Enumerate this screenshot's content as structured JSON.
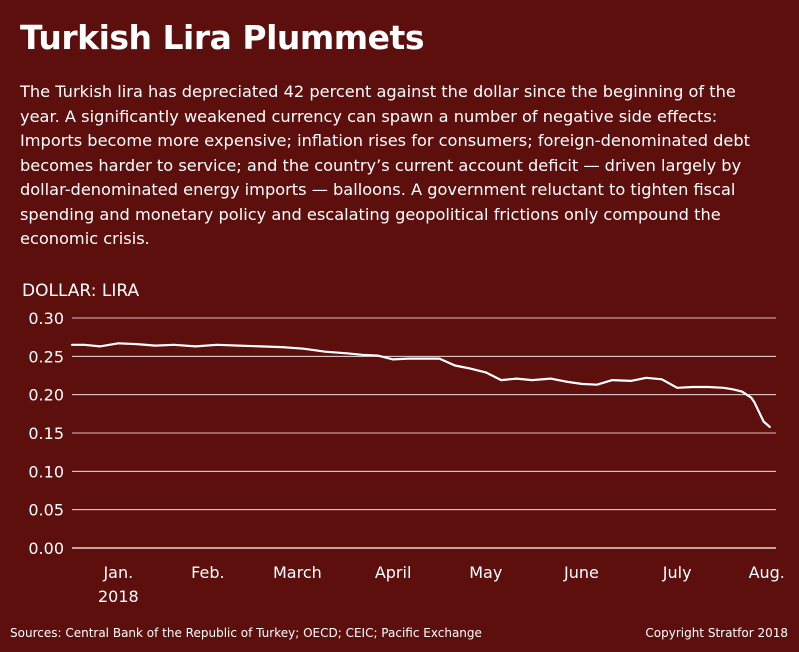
{
  "title": "Turkish Lira Plummets",
  "description": "The Turkish lira has depreciated 42 percent against the dollar since the beginning of the year. A significantly weakened currency can spawn a number of negative side effects: Imports become more expensive; inflation rises for consumers; foreign-denominated debt becomes harder to service; and the country’s current account deficit — driven largely by dollar-denominated energy imports — balloons.  A government reluctant to tighten fiscal spending and monetary policy and escalating geopolitical frictions only compound the economic crisis.",
  "sources": "Sources: Central Bank of the Republic of Turkey; OECD; CEIC; Pacific Exchange",
  "copyright": "Copyright Stratfor 2018",
  "colors": {
    "background": "#5c0f0c",
    "line": "#ffffff",
    "grid": "#ffffff"
  },
  "chart_data": {
    "type": "line",
    "ylabel": "DOLLAR: LIRA",
    "ylim": [
      0,
      0.3
    ],
    "y_ticks": [
      "0.30",
      "0.25",
      "0.20",
      "0.15",
      "0.10",
      "0.05",
      "0.00"
    ],
    "y_tick_values": [
      0.3,
      0.25,
      0.2,
      0.15,
      0.1,
      0.05,
      0.0
    ],
    "x_ticks": [
      "Jan.",
      "Feb.",
      "March",
      "April",
      "May",
      "June",
      "July",
      "Aug."
    ],
    "x_tick_sublabel": "2018",
    "grid": "horizontal",
    "legend": "none",
    "xlim": [
      "2018-01-01",
      "2018-08-17"
    ],
    "x_tick_dates": [
      "2018-01-16",
      "2018-02-14",
      "2018-03-15",
      "2018-04-15",
      "2018-05-15",
      "2018-06-15",
      "2018-07-16",
      "2018-08-14"
    ],
    "series": [
      {
        "x": [
          "2018-01-01",
          "2018-01-05",
          "2018-01-10",
          "2018-01-16",
          "2018-01-22",
          "2018-01-28",
          "2018-02-03",
          "2018-02-10",
          "2018-02-17",
          "2018-02-24",
          "2018-03-03",
          "2018-03-10",
          "2018-03-17",
          "2018-03-24",
          "2018-03-31",
          "2018-04-05",
          "2018-04-10",
          "2018-04-15",
          "2018-04-20",
          "2018-04-25",
          "2018-04-30",
          "2018-05-05",
          "2018-05-10",
          "2018-05-15",
          "2018-05-20",
          "2018-05-25",
          "2018-05-30",
          "2018-06-05",
          "2018-06-10",
          "2018-06-15",
          "2018-06-20",
          "2018-06-25",
          "2018-07-01",
          "2018-07-06",
          "2018-07-11",
          "2018-07-16",
          "2018-07-21",
          "2018-07-26",
          "2018-07-31",
          "2018-08-03",
          "2018-08-06",
          "2018-08-09",
          "2018-08-10",
          "2018-08-13",
          "2018-08-15"
        ],
        "values": [
          0.265,
          0.265,
          0.263,
          0.267,
          0.266,
          0.264,
          0.265,
          0.263,
          0.265,
          0.264,
          0.263,
          0.262,
          0.26,
          0.256,
          0.254,
          0.252,
          0.251,
          0.246,
          0.247,
          0.247,
          0.247,
          0.238,
          0.234,
          0.229,
          0.219,
          0.221,
          0.219,
          0.221,
          0.217,
          0.214,
          0.213,
          0.219,
          0.218,
          0.222,
          0.22,
          0.209,
          0.21,
          0.21,
          0.209,
          0.207,
          0.204,
          0.196,
          0.19,
          0.165,
          0.158
        ]
      }
    ]
  }
}
